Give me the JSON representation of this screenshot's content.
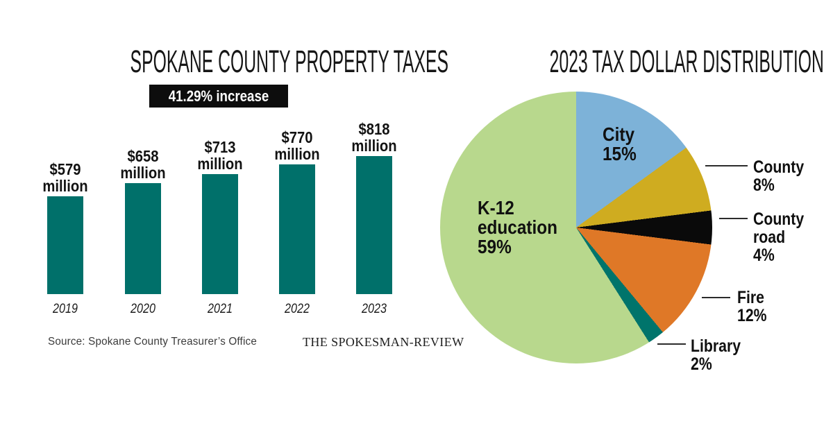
{
  "chart_data": [
    {
      "type": "bar",
      "title": "SPOKANE COUNTY PROPERTY TAXES",
      "annotation": "41.29% increase",
      "annotation_bg": "#0d0d0d",
      "annotation_fg": "#ffffff",
      "categories": [
        "2019",
        "2020",
        "2021",
        "2022",
        "2023"
      ],
      "values": [
        579,
        658,
        713,
        770,
        818
      ],
      "value_labels": [
        [
          "$579",
          "million"
        ],
        [
          "$658",
          "million"
        ],
        [
          "$713",
          "million"
        ],
        [
          "$770",
          "million"
        ],
        [
          "$818",
          "million"
        ]
      ],
      "bar_color": "#00706a",
      "xlabel": "",
      "ylabel": "",
      "ylim": [
        0,
        818
      ],
      "grid": false,
      "legend": "none"
    },
    {
      "type": "pie",
      "title": "2023 TAX DOLLAR DISTRIBUTION",
      "start_angle_deg": 0,
      "direction": "clockwise",
      "leader_color": "#2b2b2b",
      "slices": [
        {
          "label": "City",
          "pct": 15,
          "color": "#7db2d8",
          "lines": [
            "City",
            "15%"
          ],
          "label_placement": "inside"
        },
        {
          "label": "County",
          "pct": 8,
          "color": "#cfac20",
          "lines": [
            "County",
            "8%"
          ],
          "label_placement": "outside"
        },
        {
          "label": "County road",
          "pct": 4,
          "color": "#0a0a0a",
          "lines": [
            "County",
            "road",
            "4%"
          ],
          "label_placement": "outside"
        },
        {
          "label": "Fire",
          "pct": 12,
          "color": "#df7827",
          "lines": [
            "Fire",
            "12%"
          ],
          "label_placement": "outside"
        },
        {
          "label": "Library",
          "pct": 2,
          "color": "#00746b",
          "lines": [
            "Library",
            "2%"
          ],
          "label_placement": "outside"
        },
        {
          "label": "K-12 education",
          "pct": 59,
          "color": "#b8d88d",
          "lines": [
            "K-12",
            "education",
            "59%"
          ],
          "label_placement": "inside"
        }
      ]
    }
  ],
  "footer": {
    "source": "Source: Spokane County Treasurer’s Office",
    "credit": "THE SPOKESMAN-REVIEW"
  }
}
